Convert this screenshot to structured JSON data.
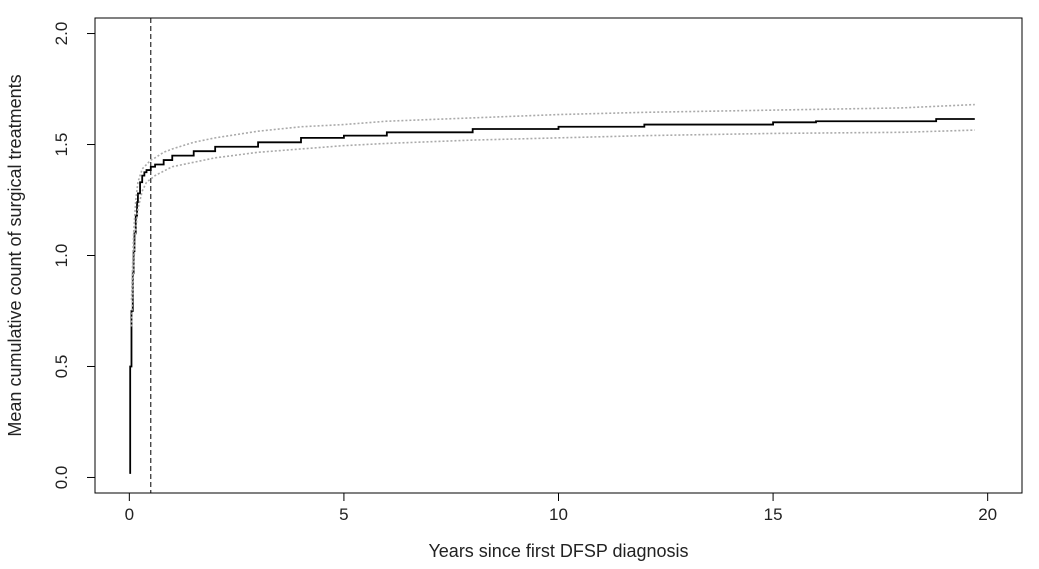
{
  "chart_data": {
    "type": "line",
    "title": "",
    "xlabel": "Years since first DFSP diagnosis",
    "ylabel": "Mean cumulative count of surgical treatments",
    "xlim": [
      -0.8,
      20.8
    ],
    "ylim": [
      -0.07,
      2.07
    ],
    "x_ticks": [
      0,
      5,
      10,
      15,
      20
    ],
    "x_tick_labels": [
      "0",
      "5",
      "10",
      "15",
      "20"
    ],
    "y_ticks": [
      0.0,
      0.5,
      1.0,
      1.5,
      2.0
    ],
    "y_tick_labels": [
      "0.0",
      "0.5",
      "1.0",
      "1.5",
      "2.0"
    ],
    "grid": false,
    "reference_line": {
      "x": 0.5,
      "style": "dashed"
    },
    "series": [
      {
        "role": "estimate",
        "color": "#000000",
        "style": "solid-step",
        "x": [
          0,
          0.02,
          0.05,
          0.08,
          0.1,
          0.12,
          0.15,
          0.18,
          0.2,
          0.25,
          0.3,
          0.35,
          0.4,
          0.5,
          0.6,
          0.8,
          1.0,
          1.5,
          2.0,
          3.0,
          4.0,
          5.0,
          6.0,
          8.0,
          10.0,
          12.0,
          15.0,
          16.0,
          18.8,
          19.7
        ],
        "y": [
          0.02,
          0.5,
          0.75,
          0.92,
          1.02,
          1.1,
          1.18,
          1.24,
          1.28,
          1.33,
          1.36,
          1.375,
          1.385,
          1.4,
          1.41,
          1.43,
          1.45,
          1.47,
          1.49,
          1.51,
          1.53,
          1.54,
          1.555,
          1.57,
          1.58,
          1.59,
          1.6,
          1.605,
          1.615,
          1.615
        ]
      },
      {
        "role": "upper-confidence-bound",
        "color": "#aaaaaa",
        "style": "dotted",
        "x": [
          0.05,
          0.1,
          0.15,
          0.2,
          0.3,
          0.4,
          0.5,
          0.6,
          0.8,
          1.0,
          1.5,
          2.0,
          3.0,
          4.0,
          5.0,
          6.0,
          8.0,
          10.0,
          12.0,
          15.0,
          18.0,
          19.7
        ],
        "y": [
          0.8,
          1.1,
          1.25,
          1.33,
          1.39,
          1.41,
          1.43,
          1.44,
          1.465,
          1.48,
          1.51,
          1.53,
          1.56,
          1.58,
          1.59,
          1.605,
          1.62,
          1.635,
          1.645,
          1.655,
          1.665,
          1.68
        ]
      },
      {
        "role": "lower-confidence-bound",
        "color": "#aaaaaa",
        "style": "dotted",
        "x": [
          0.05,
          0.1,
          0.15,
          0.2,
          0.3,
          0.4,
          0.5,
          0.6,
          0.8,
          1.0,
          1.5,
          2.0,
          3.0,
          4.0,
          5.0,
          6.0,
          8.0,
          10.0,
          12.0,
          15.0,
          18.0,
          19.7
        ],
        "y": [
          0.68,
          0.95,
          1.12,
          1.21,
          1.29,
          1.33,
          1.345,
          1.36,
          1.38,
          1.4,
          1.42,
          1.44,
          1.465,
          1.48,
          1.495,
          1.505,
          1.52,
          1.53,
          1.54,
          1.55,
          1.555,
          1.565
        ]
      }
    ]
  }
}
